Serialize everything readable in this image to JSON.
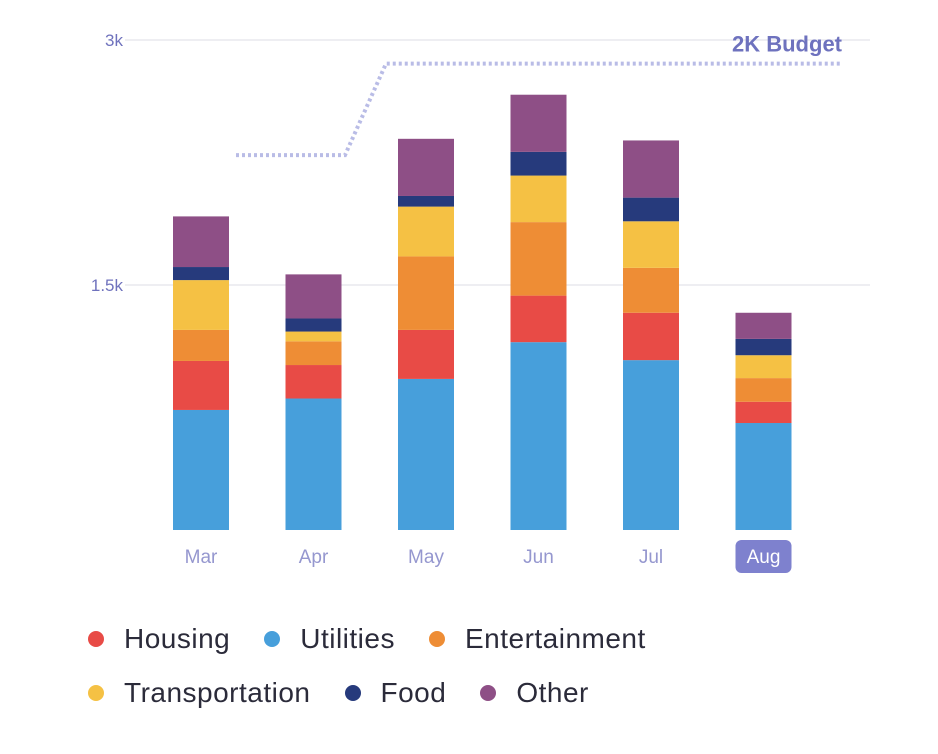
{
  "chart_data": {
    "type": "bar",
    "stacked": true,
    "categories": [
      "Mar",
      "Apr",
      "May",
      "Jun",
      "Jul",
      "Aug"
    ],
    "highlighted_category": "Aug",
    "y_ticks": [
      {
        "value": 3000,
        "label": "3k"
      },
      {
        "value": 1500,
        "label": "1.5k"
      }
    ],
    "ylim": [
      0,
      3000
    ],
    "grid": true,
    "series": [
      {
        "name": "Utilities",
        "color": "#479FDB",
        "values": [
          735,
          805,
          925,
          1150,
          1040,
          655
        ]
      },
      {
        "name": "Housing",
        "color": "#E84B46",
        "values": [
          300,
          205,
          300,
          285,
          290,
          130
        ]
      },
      {
        "name": "Entertainment",
        "color": "#EE8D35",
        "values": [
          190,
          145,
          450,
          450,
          275,
          145
        ]
      },
      {
        "name": "Transportation",
        "color": "#F5C144",
        "values": [
          305,
          60,
          305,
          285,
          285,
          140
        ]
      },
      {
        "name": "Food",
        "color": "#263A7C",
        "values": [
          80,
          80,
          65,
          145,
          145,
          100
        ]
      },
      {
        "name": "Other",
        "color": "#8E4F86",
        "values": [
          310,
          270,
          350,
          350,
          350,
          160
        ]
      }
    ],
    "budget_line": {
      "label": "2K Budget",
      "color": "#B9BCE6",
      "label_color": "#6E72BE",
      "steps": [
        {
          "from": "Mar",
          "value": 2295
        },
        {
          "from": "May",
          "value": 2855
        }
      ]
    },
    "legend": {
      "position": "bottom",
      "rows": [
        [
          "Housing",
          "Utilities",
          "Entertainment"
        ],
        [
          "Transportation",
          "Food",
          "Other"
        ]
      ]
    }
  }
}
